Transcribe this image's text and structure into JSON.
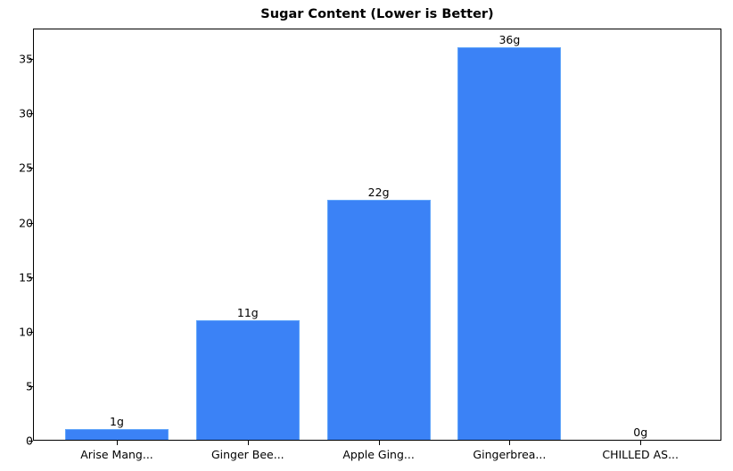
{
  "chart_data": {
    "type": "bar",
    "title": "Sugar Content (Lower is Better)",
    "xlabel": "",
    "ylabel": "",
    "categories": [
      "Arise Mang...",
      "Ginger Bee...",
      "Apple Ging...",
      "Gingerbrea...",
      "CHILLED AS..."
    ],
    "values": [
      1,
      11,
      22,
      36,
      0
    ],
    "value_labels": [
      "1g",
      "11g",
      "22g",
      "36g",
      "0g"
    ],
    "ylim": [
      0,
      37.8
    ],
    "yticks": [
      0,
      5,
      10,
      15,
      20,
      25,
      30,
      35
    ],
    "grid": false,
    "legend": null,
    "bar_color": "#3b82f6"
  }
}
